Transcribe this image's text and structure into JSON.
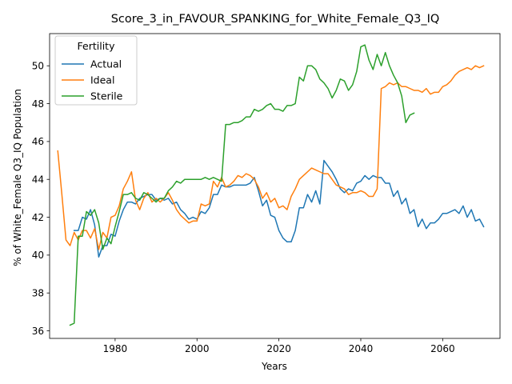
{
  "chart_data": {
    "type": "line",
    "title": "Score_3_in_FAVOUR_SPANKING_for_White_Female_Q3_IQ",
    "xlabel": "Years",
    "ylabel": "% of White_Female Q3_IQ Population",
    "xlim": [
      1964,
      2074
    ],
    "ylim": [
      35.6,
      51.7
    ],
    "xticks": [
      1980,
      2000,
      2020,
      2040,
      2060
    ],
    "yticks": [
      36,
      38,
      40,
      42,
      44,
      46,
      48,
      50
    ],
    "grid": false,
    "legend": {
      "title": "Fertility",
      "placement": "top-left"
    },
    "series": [
      {
        "name": "Actual",
        "color": "#1f77b4",
        "x": [
          1970,
          1971,
          1972,
          1973,
          1974,
          1975,
          1976,
          1977,
          1978,
          1979,
          1980,
          1981,
          1982,
          1983,
          1984,
          1985,
          1986,
          1987,
          1988,
          1989,
          1990,
          1991,
          1992,
          1993,
          1994,
          1995,
          1996,
          1997,
          1998,
          1999,
          2000,
          2001,
          2002,
          2003,
          2004,
          2005,
          2006,
          2007,
          2008,
          2009,
          2010,
          2011,
          2012,
          2013,
          2014,
          2015,
          2016,
          2017,
          2018,
          2019,
          2020,
          2021,
          2022,
          2023,
          2024,
          2025,
          2026,
          2027,
          2028,
          2029,
          2030,
          2031,
          2032,
          2033,
          2034,
          2035,
          2036,
          2037,
          2038,
          2039,
          2040,
          2041,
          2042,
          2043,
          2044,
          2045,
          2046,
          2047,
          2048,
          2049,
          2050,
          2051,
          2052,
          2053,
          2054,
          2055,
          2056,
          2057,
          2058,
          2059,
          2060,
          2061,
          2062,
          2063,
          2064,
          2065,
          2066,
          2067,
          2068,
          2069,
          2070
        ],
        "y": [
          41.3,
          41.3,
          42.0,
          41.9,
          42.4,
          41.6,
          39.9,
          40.5,
          40.5,
          41.1,
          41.0,
          41.8,
          42.4,
          42.8,
          42.8,
          42.7,
          43.0,
          43.1,
          43.2,
          43.2,
          42.9,
          43.0,
          42.9,
          43.0,
          42.7,
          42.8,
          42.4,
          42.2,
          41.9,
          42.0,
          41.9,
          42.3,
          42.2,
          42.5,
          43.2,
          43.2,
          43.7,
          43.6,
          43.6,
          43.7,
          43.7,
          43.7,
          43.7,
          43.8,
          44.1,
          43.4,
          42.6,
          42.9,
          42.1,
          42.0,
          41.3,
          40.9,
          40.7,
          40.7,
          41.3,
          42.5,
          42.5,
          43.2,
          42.8,
          43.4,
          42.7,
          45.0,
          44.7,
          44.4,
          44.0,
          43.5,
          43.3,
          43.5,
          43.4,
          43.8,
          43.9,
          44.2,
          44.0,
          44.2,
          44.1,
          44.1,
          43.8,
          43.8,
          43.1,
          43.4,
          42.7,
          43.0,
          42.2,
          42.4,
          41.5,
          41.9,
          41.4,
          41.7,
          41.7,
          41.9,
          42.2,
          42.2,
          42.3,
          42.4,
          42.2,
          42.6,
          42.0,
          42.4,
          41.8,
          41.9,
          41.5
        ]
      },
      {
        "name": "Ideal",
        "color": "#ff7f0e",
        "x": [
          1966,
          1967,
          1968,
          1969,
          1970,
          1971,
          1972,
          1973,
          1974,
          1975,
          1976,
          1977,
          1978,
          1979,
          1980,
          1981,
          1982,
          1983,
          1984,
          1985,
          1986,
          1987,
          1988,
          1989,
          1990,
          1991,
          1992,
          1993,
          1994,
          1995,
          1996,
          1997,
          1998,
          1999,
          2000,
          2001,
          2002,
          2003,
          2004,
          2005,
          2006,
          2007,
          2008,
          2009,
          2010,
          2011,
          2012,
          2013,
          2014,
          2015,
          2016,
          2017,
          2018,
          2019,
          2020,
          2021,
          2022,
          2023,
          2024,
          2025,
          2026,
          2027,
          2028,
          2029,
          2030,
          2031,
          2032,
          2033,
          2034,
          2035,
          2036,
          2037,
          2038,
          2039,
          2040,
          2041,
          2042,
          2043,
          2044,
          2045,
          2046,
          2047,
          2048,
          2049,
          2050,
          2051,
          2052,
          2053,
          2054,
          2055,
          2056,
          2057,
          2058,
          2059,
          2060,
          2061,
          2062,
          2063,
          2064,
          2065,
          2066,
          2067,
          2068,
          2069,
          2070
        ],
        "y": [
          45.5,
          43.2,
          40.8,
          40.5,
          41.2,
          40.8,
          41.3,
          41.3,
          40.9,
          41.4,
          40.3,
          41.2,
          40.9,
          42.0,
          42.1,
          42.6,
          43.5,
          43.9,
          44.4,
          42.9,
          42.4,
          43.0,
          43.3,
          42.8,
          43.0,
          42.8,
          43.0,
          43.3,
          42.9,
          42.4,
          42.1,
          41.9,
          41.7,
          41.8,
          41.8,
          42.7,
          42.6,
          42.7,
          43.9,
          43.6,
          44.1,
          43.6,
          43.7,
          43.9,
          44.2,
          44.1,
          44.3,
          44.2,
          44.0,
          43.6,
          43.0,
          43.3,
          42.8,
          43.0,
          42.5,
          42.6,
          42.4,
          43.1,
          43.5,
          44.0,
          44.2,
          44.4,
          44.6,
          44.5,
          44.4,
          44.3,
          44.3,
          44.0,
          43.7,
          43.6,
          43.5,
          43.2,
          43.3,
          43.3,
          43.4,
          43.3,
          43.1,
          43.1,
          43.5,
          48.8,
          48.9,
          49.1,
          49.0,
          49.1,
          48.9,
          48.9,
          48.8,
          48.7,
          48.7,
          48.6,
          48.8,
          48.5,
          48.6,
          48.6,
          48.9,
          49.0,
          49.2,
          49.5,
          49.7,
          49.8,
          49.9,
          49.8,
          50.0,
          49.9,
          50.0
        ]
      },
      {
        "name": "Sterile",
        "color": "#2ca02c",
        "x": [
          1969,
          1970,
          1971,
          1972,
          1973,
          1974,
          1975,
          1976,
          1977,
          1978,
          1979,
          1980,
          1981,
          1982,
          1983,
          1984,
          1985,
          1986,
          1987,
          1988,
          1989,
          1990,
          1991,
          1992,
          1993,
          1994,
          1995,
          1996,
          1997,
          1998,
          1999,
          2000,
          2001,
          2002,
          2003,
          2004,
          2005,
          2006,
          2007,
          2008,
          2009,
          2010,
          2011,
          2012,
          2013,
          2014,
          2015,
          2016,
          2017,
          2018,
          2019,
          2020,
          2021,
          2022,
          2023,
          2024,
          2025,
          2026,
          2027,
          2028,
          2029,
          2030,
          2031,
          2032,
          2033,
          2034,
          2035,
          2036,
          2037,
          2038,
          2039,
          2040,
          2041,
          2042,
          2043,
          2044,
          2045,
          2046,
          2047,
          2048,
          2049,
          2050,
          2051,
          2052,
          2053
        ],
        "y": [
          36.3,
          36.4,
          41.0,
          41.0,
          42.3,
          42.1,
          42.4,
          41.7,
          40.3,
          40.9,
          40.6,
          41.5,
          42.3,
          43.2,
          43.2,
          43.3,
          43.0,
          42.9,
          43.3,
          43.2,
          43.0,
          42.8,
          43.0,
          43.0,
          43.4,
          43.6,
          43.9,
          43.8,
          44.0,
          44.0,
          44.0,
          44.0,
          44.0,
          44.1,
          44.0,
          44.1,
          44.0,
          43.9,
          46.9,
          46.9,
          47.0,
          47.0,
          47.1,
          47.3,
          47.3,
          47.7,
          47.6,
          47.7,
          47.9,
          48.0,
          47.7,
          47.7,
          47.6,
          47.9,
          47.9,
          48.0,
          49.4,
          49.2,
          50.0,
          50.0,
          49.8,
          49.3,
          49.1,
          48.8,
          48.3,
          48.7,
          49.3,
          49.2,
          48.7,
          49.0,
          49.7,
          51.0,
          51.1,
          50.3,
          49.8,
          50.6,
          50.0,
          50.7,
          50.0,
          49.5,
          49.1,
          48.4,
          47.0,
          47.4,
          47.5
        ]
      }
    ]
  }
}
